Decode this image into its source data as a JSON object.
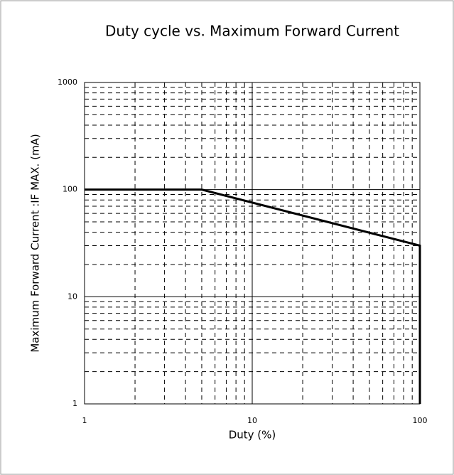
{
  "chart_data": {
    "type": "line",
    "title": "Duty cycle vs. Maximum Forward Current",
    "xlabel": "Duty (%)",
    "ylabel": "Maximum Forward Current :IF MAX.  (mA)",
    "x": [
      1,
      5,
      100,
      100
    ],
    "values": [
      100,
      100,
      30,
      1
    ],
    "color": "#000000",
    "xscale": "log",
    "yscale": "log",
    "xlim": [
      1,
      100
    ],
    "ylim": [
      1,
      1000
    ],
    "xticks": [
      1,
      10,
      100
    ],
    "yticks": [
      1,
      10,
      100,
      1000
    ],
    "grid": true,
    "minor_grid": true
  }
}
